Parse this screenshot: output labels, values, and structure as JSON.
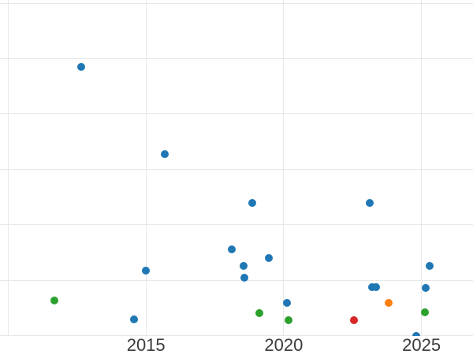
{
  "chart_data": {
    "type": "scatter",
    "title": "",
    "xlabel": "",
    "ylabel": "",
    "grid": true,
    "legend": false,
    "xlim": [
      2009.7,
      2026.87
    ],
    "ylim": [
      0,
      6.06
    ],
    "x_tick_labels": [
      "2015",
      "2020",
      "2025"
    ],
    "x_tick_positions": [
      2015,
      2020,
      2025
    ],
    "x_gridline_positions": [
      2010,
      2015,
      2020,
      2025
    ],
    "y_gridline_positions": [
      0,
      1,
      2,
      3,
      4,
      5,
      6
    ],
    "y_tick_labels": [],
    "colors": {
      "blue": "#1f77b4",
      "green": "#2ca02c",
      "orange": "#ff7f0e",
      "red": "#d62728",
      "grid": "#e8e8e8",
      "tick_text": "#3b3b3b"
    },
    "series": [
      {
        "name": "blue",
        "color": "#1f77b4",
        "points": [
          {
            "x": 2012.65,
            "y": 4.85
          },
          {
            "x": 2015.68,
            "y": 3.28
          },
          {
            "x": 2018.85,
            "y": 2.39
          },
          {
            "x": 2023.12,
            "y": 2.39
          },
          {
            "x": 2018.11,
            "y": 1.55
          },
          {
            "x": 2019.46,
            "y": 1.4
          },
          {
            "x": 2018.54,
            "y": 1.26
          },
          {
            "x": 2015.0,
            "y": 1.17
          },
          {
            "x": 2018.57,
            "y": 1.04
          },
          {
            "x": 2025.31,
            "y": 1.26
          },
          {
            "x": 2025.15,
            "y": 0.86
          },
          {
            "x": 2023.2,
            "y": 0.88
          },
          {
            "x": 2023.34,
            "y": 0.88
          },
          {
            "x": 2020.13,
            "y": 0.59
          },
          {
            "x": 2014.56,
            "y": 0.29
          },
          {
            "x": 2024.81,
            "y": -0.01
          }
        ]
      },
      {
        "name": "green",
        "color": "#2ca02c",
        "points": [
          {
            "x": 2011.67,
            "y": 0.63
          },
          {
            "x": 2019.12,
            "y": 0.41
          },
          {
            "x": 2020.17,
            "y": 0.27
          },
          {
            "x": 2025.12,
            "y": 0.42
          }
        ]
      },
      {
        "name": "orange",
        "color": "#ff7f0e",
        "points": [
          {
            "x": 2023.8,
            "y": 0.59
          }
        ]
      },
      {
        "name": "red",
        "color": "#d62728",
        "points": [
          {
            "x": 2022.56,
            "y": 0.27
          }
        ]
      }
    ]
  }
}
